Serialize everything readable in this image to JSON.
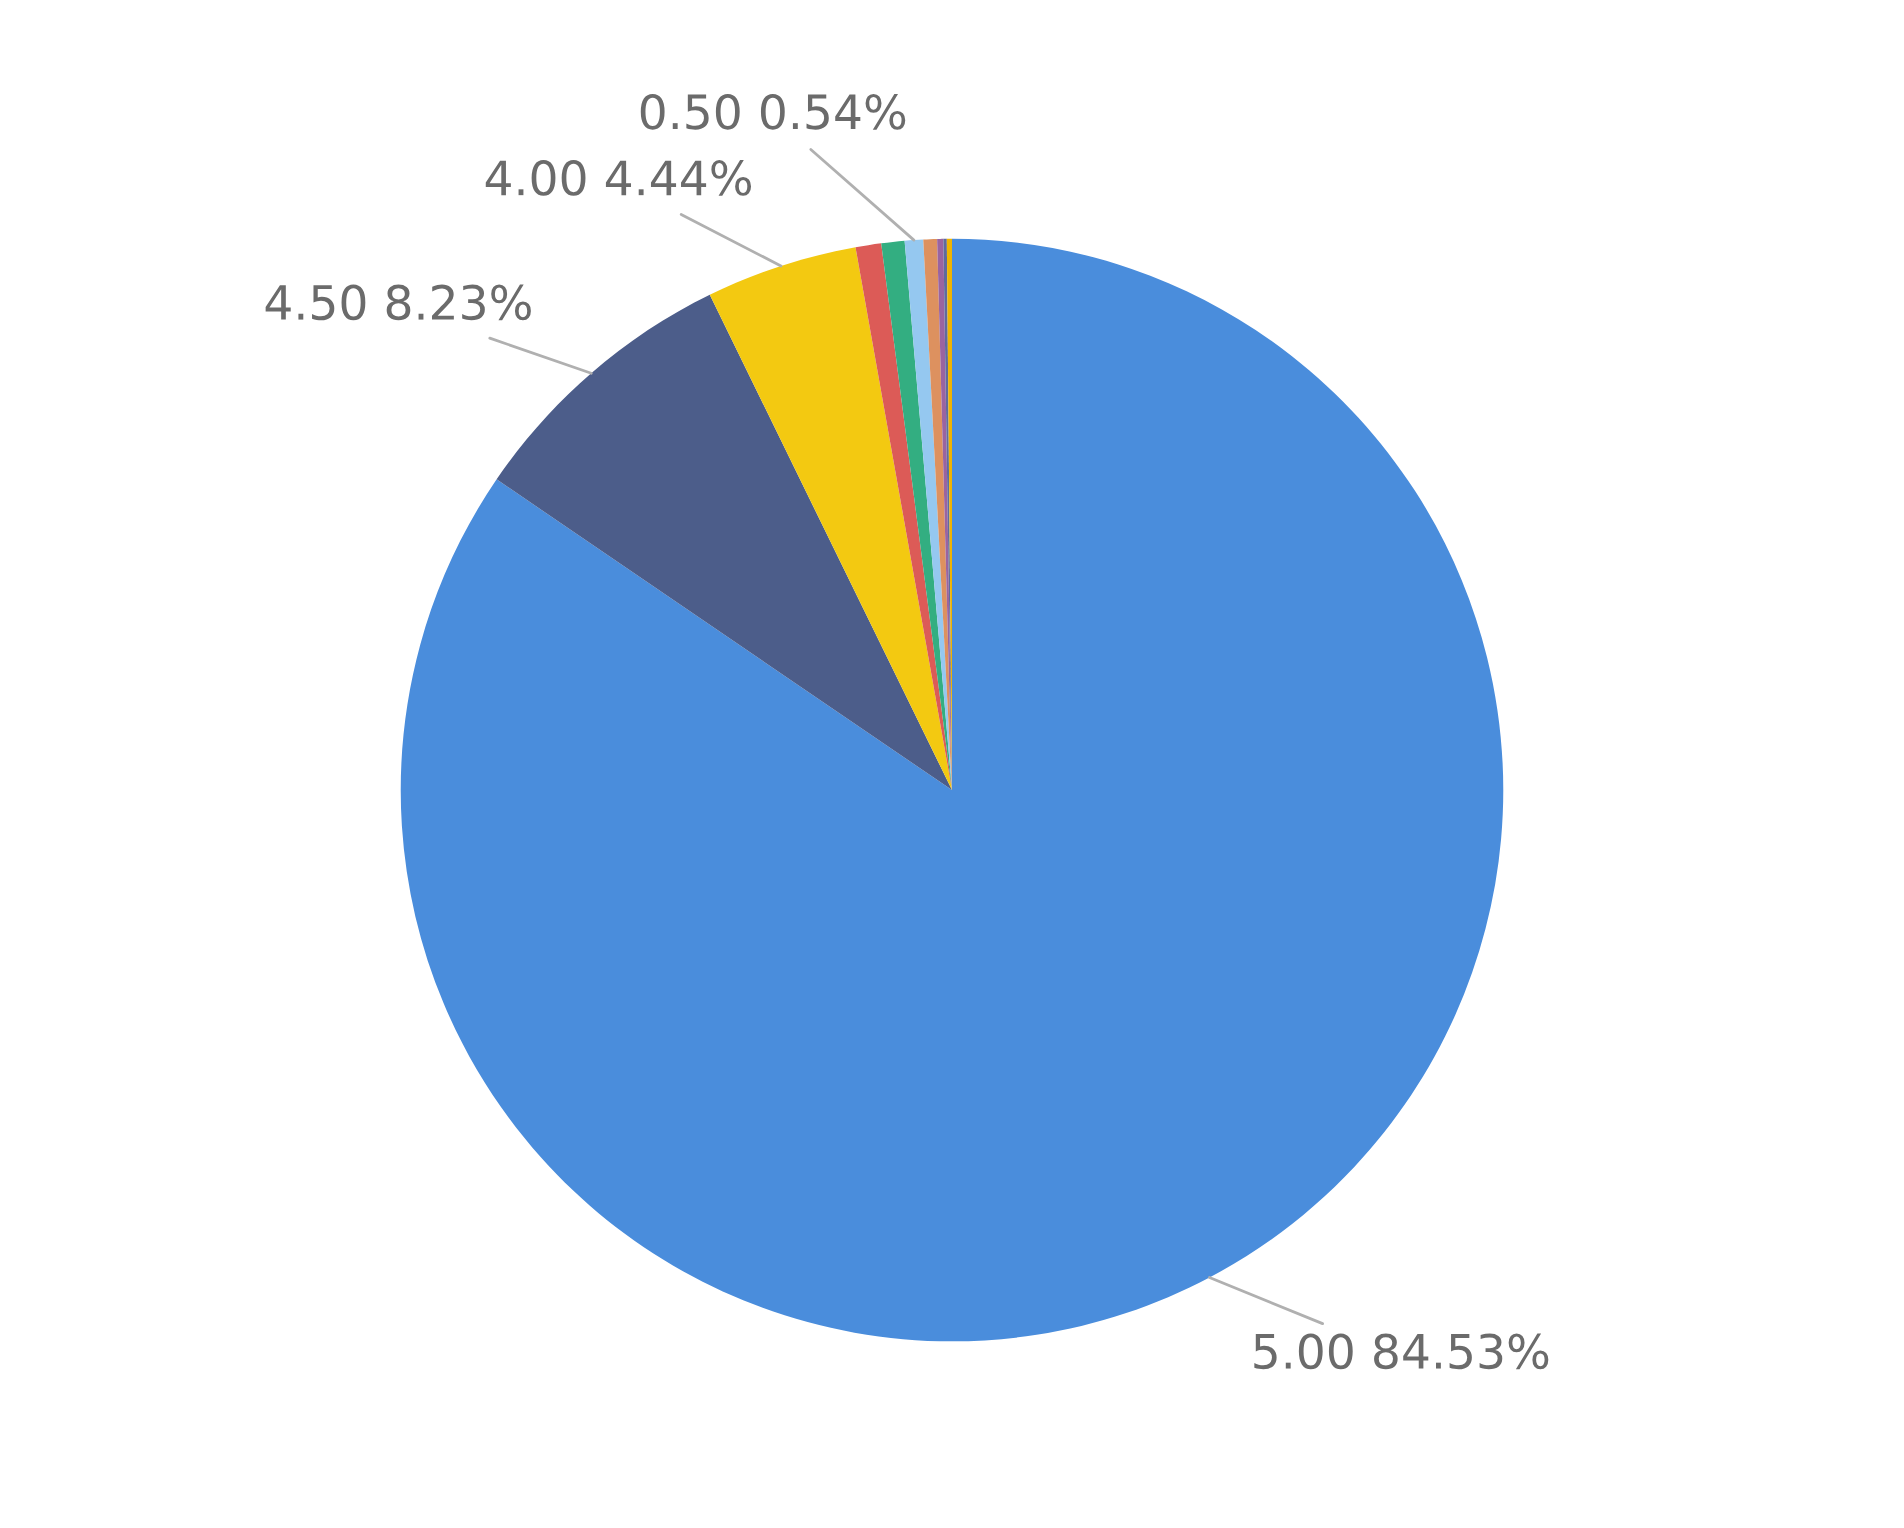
{
  "chart_data": {
    "type": "pie",
    "categories": [
      "5.00",
      "4.50",
      "4.00",
      null,
      null,
      "0.50",
      null,
      null,
      null,
      null
    ],
    "values": [
      84.53,
      8.23,
      4.44,
      0.75,
      0.68,
      0.54,
      0.4,
      0.18,
      0.1,
      0.15
    ],
    "value_labels": [
      "84.53%",
      "8.23%",
      "4.44%",
      null,
      null,
      "0.54%",
      null,
      null,
      null,
      null
    ],
    "colors": [
      "#4a8ddc",
      "#4c5d8a",
      "#f3c911",
      "#dc5b57",
      "#33ae81",
      "#95c8f0",
      "#dd915f",
      "#9a64a0",
      "#5f6b9d",
      "#f0b400"
    ],
    "legend": false
  }
}
